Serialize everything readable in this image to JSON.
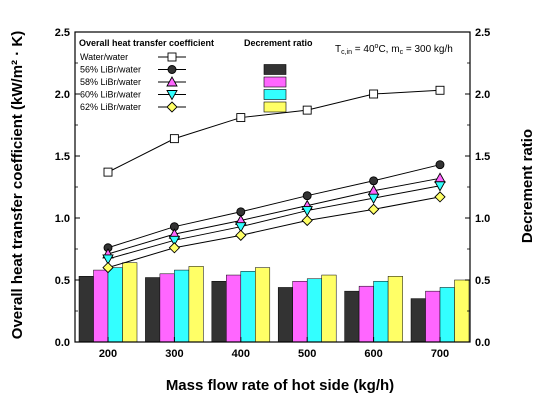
{
  "chart_data": {
    "type": "bar+line",
    "categories": [
      "200",
      "300",
      "400",
      "500",
      "600",
      "700"
    ],
    "xlabel": "Mass flow rate of hot side (kg/h)",
    "ylabel_left": "Overall heat transfer coefficient (kW/m² · K)",
    "ylabel_right": "Decrement ratio",
    "ylim_left": [
      0,
      2.5
    ],
    "ylim_right": [
      0,
      2.5
    ],
    "yticks": [
      "0.0",
      "0.5",
      "1.0",
      "1.5",
      "2.0",
      "2.5"
    ],
    "condition": {
      "t_main": "T",
      "t_sub": "c,in",
      "t_mid": " = 40",
      "t_sup": "o",
      "t_c": "C, m",
      "m_sub": "c",
      "tail": " = 300 kg/h"
    },
    "legend": {
      "header_left": "Overall heat transfer coefficient",
      "header_right": "Decrement ratio"
    },
    "line_series": [
      {
        "name": "Water/water",
        "marker": "square",
        "fill": "#ffffff",
        "values": [
          1.37,
          1.64,
          1.81,
          1.87,
          2.0,
          2.03
        ]
      },
      {
        "name": "56% LiBr/water",
        "marker": "circle",
        "fill": "#333333",
        "values": [
          0.76,
          0.93,
          1.05,
          1.18,
          1.3,
          1.43
        ]
      },
      {
        "name": "58% LiBr/water",
        "marker": "triangle-up",
        "fill": "#ff66ff",
        "values": [
          0.71,
          0.87,
          0.98,
          1.1,
          1.22,
          1.32
        ]
      },
      {
        "name": "60% LiBr/water",
        "marker": "triangle-down",
        "fill": "#33ffff",
        "values": [
          0.67,
          0.82,
          0.93,
          1.06,
          1.16,
          1.26
        ]
      },
      {
        "name": "62% LiBr/water",
        "marker": "diamond",
        "fill": "#ffff66",
        "values": [
          0.6,
          0.76,
          0.86,
          0.98,
          1.07,
          1.17
        ]
      }
    ],
    "bar_series": [
      {
        "name": "Water/water",
        "color": "#333333",
        "values": [
          0.53,
          0.52,
          0.49,
          0.44,
          0.41,
          0.35
        ]
      },
      {
        "name": "56% LiBr/water",
        "color": "#ff66ff",
        "values": [
          0.58,
          0.55,
          0.54,
          0.49,
          0.45,
          0.41
        ]
      },
      {
        "name": "58% LiBr/water",
        "color": "#33ffff",
        "values": [
          0.6,
          0.58,
          0.57,
          0.51,
          0.49,
          0.44
        ]
      },
      {
        "name": "60% LiBr/water",
        "color": "#ffff66",
        "values": [
          0.64,
          0.61,
          0.6,
          0.54,
          0.53,
          0.5
        ]
      }
    ]
  }
}
